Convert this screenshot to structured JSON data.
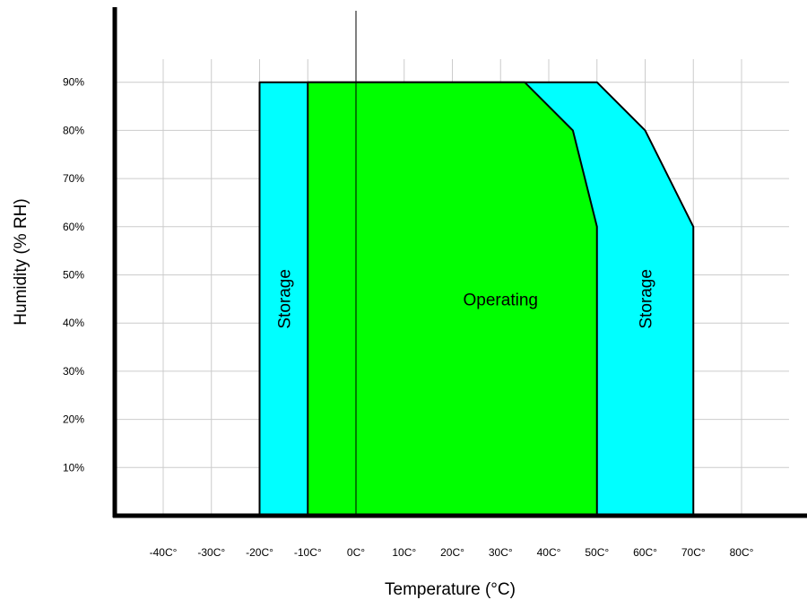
{
  "chart_data": {
    "type": "area",
    "title": "",
    "xlabel": "Temperature (°C)",
    "ylabel": "Humidity (% RH)",
    "x_ticks": [
      {
        "value": -40,
        "label": "-40C°"
      },
      {
        "value": -30,
        "label": "-30C°"
      },
      {
        "value": -20,
        "label": "-20C°"
      },
      {
        "value": -10,
        "label": "-10C°"
      },
      {
        "value": 0,
        "label": "0C°"
      },
      {
        "value": 10,
        "label": "10C°"
      },
      {
        "value": 20,
        "label": "20C°"
      },
      {
        "value": 30,
        "label": "30C°"
      },
      {
        "value": 40,
        "label": "40C°"
      },
      {
        "value": 50,
        "label": "50C°"
      },
      {
        "value": 60,
        "label": "60C°"
      },
      {
        "value": 70,
        "label": "70C°"
      },
      {
        "value": 80,
        "label": "80C°"
      }
    ],
    "y_ticks": [
      {
        "value": 10,
        "label": "10%"
      },
      {
        "value": 20,
        "label": "20%"
      },
      {
        "value": 30,
        "label": "30%"
      },
      {
        "value": 40,
        "label": "40%"
      },
      {
        "value": 50,
        "label": "50%"
      },
      {
        "value": 60,
        "label": "60%"
      },
      {
        "value": 70,
        "label": "70%"
      },
      {
        "value": 80,
        "label": "80%"
      },
      {
        "value": 90,
        "label": "90%"
      }
    ],
    "xlim": [
      -50,
      90
    ],
    "ylim": [
      0,
      105
    ],
    "grid": true,
    "series": [
      {
        "name": "Storage",
        "color": "#00ffff",
        "label_position": {
          "x": -15,
          "y": 45
        },
        "label_rotated": true,
        "polygon": [
          [
            -20,
            0
          ],
          [
            -20,
            90
          ],
          [
            50,
            90
          ],
          [
            60,
            80
          ],
          [
            70,
            60
          ],
          [
            70,
            0
          ]
        ]
      },
      {
        "name": "Operating",
        "color": "#00ff00",
        "label_position": {
          "x": 30,
          "y": 45
        },
        "label_rotated": false,
        "polygon": [
          [
            -10,
            0
          ],
          [
            -10,
            90
          ],
          [
            35,
            90
          ],
          [
            45,
            80
          ],
          [
            50,
            60
          ],
          [
            50,
            0
          ]
        ]
      },
      {
        "name": "Storage",
        "color": "#00ffff",
        "label_position": {
          "x": 60,
          "y": 45
        },
        "label_rotated": true,
        "polygon": []
      }
    ],
    "zero_line_x": 0
  }
}
